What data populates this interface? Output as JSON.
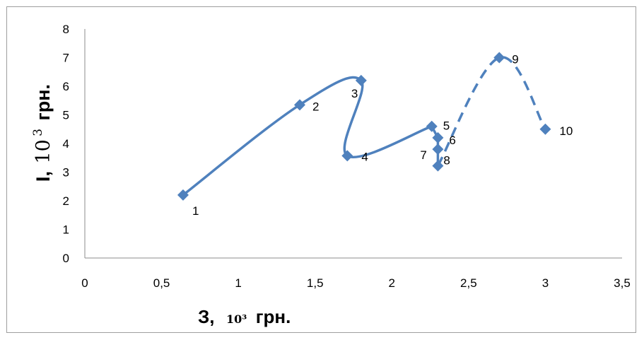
{
  "chart_data": {
    "type": "scatter",
    "title": "",
    "xlabel": {
      "main": "З,",
      "unit": "10³",
      "suffix": "грн."
    },
    "ylabel": {
      "main": "І,",
      "unit": "10",
      "exp": "3",
      "suffix": "грн."
    },
    "xlim": [
      0,
      3.5
    ],
    "ylim": [
      0,
      8
    ],
    "x_ticks": [
      "0",
      "0,5",
      "1",
      "1,5",
      "2",
      "2,5",
      "3",
      "3,5"
    ],
    "y_ticks": [
      "0",
      "1",
      "2",
      "3",
      "4",
      "5",
      "6",
      "7",
      "8"
    ],
    "grid": false,
    "legend": "none",
    "series_color": "#4F81BD",
    "points": [
      {
        "label": "1",
        "x": 0.64,
        "y": 2.2
      },
      {
        "label": "2",
        "x": 1.4,
        "y": 5.35
      },
      {
        "label": "3",
        "x": 1.8,
        "y": 6.2
      },
      {
        "label": "4",
        "x": 1.71,
        "y": 3.57
      },
      {
        "label": "5",
        "x": 2.26,
        "y": 4.6
      },
      {
        "label": "6",
        "x": 2.3,
        "y": 4.2
      },
      {
        "label": "7",
        "x": 2.3,
        "y": 3.8
      },
      {
        "label": "8",
        "x": 2.3,
        "y": 3.22
      },
      {
        "label": "9",
        "x": 2.7,
        "y": 7.0
      },
      {
        "label": "10",
        "x": 3.0,
        "y": 4.5
      }
    ],
    "solid_segment": [
      "1",
      "2",
      "3",
      "4",
      "5"
    ],
    "dashed_segment": [
      "8",
      "9",
      "10"
    ]
  }
}
